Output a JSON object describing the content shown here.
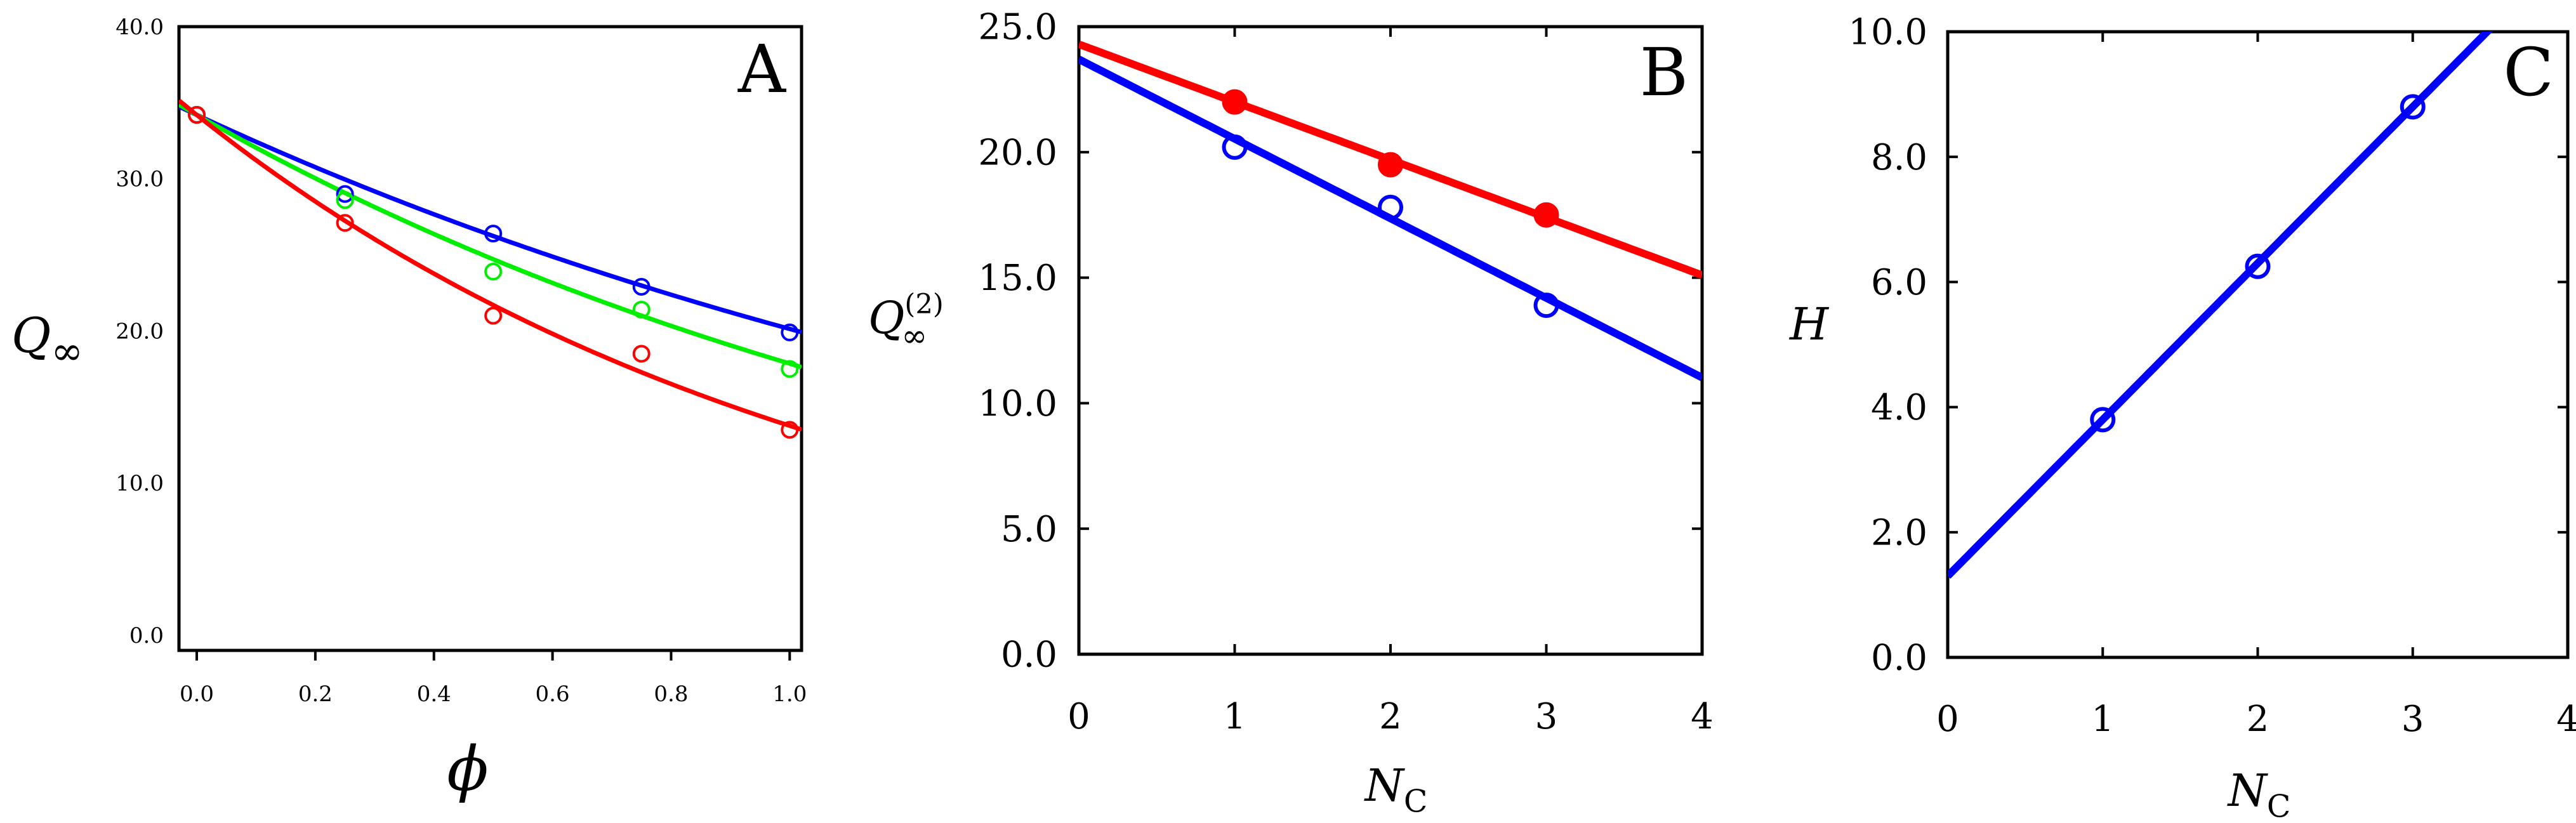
{
  "chart_data": [
    {
      "type": "scatter",
      "panel": "A",
      "xlabel": "ϕ",
      "ylabel": "Q",
      "ylabel_sub": "∞",
      "xlim": [
        -0.03,
        1.02
      ],
      "ylim": [
        -1.0,
        40.0
      ],
      "xticks": [
        0.0,
        0.2,
        0.4,
        0.6,
        0.8,
        1.0
      ],
      "xtick_labels": [
        "0.0",
        "0.2",
        "0.4",
        "0.6",
        "0.8",
        "1.0"
      ],
      "yticks": [
        0,
        10,
        20,
        30,
        40
      ],
      "ytick_labels": [
        "0.0",
        "10.0",
        "20.0",
        "30.0",
        "40.0"
      ],
      "series": [
        {
          "color": "#0000ff",
          "markers": "open-circle",
          "x": [
            0.0,
            0.25,
            0.5,
            0.75,
            1.0
          ],
          "y": [
            34.2,
            29.0,
            26.4,
            22.9,
            19.9
          ],
          "fit": {
            "kind": "exp",
            "a": 34.2,
            "b": 0.53
          }
        },
        {
          "color": "#00ee00",
          "markers": "open-circle",
          "x": [
            0.0,
            0.25,
            0.5,
            0.75,
            1.0
          ],
          "y": [
            34.2,
            28.6,
            23.9,
            21.4,
            17.5
          ],
          "fit": {
            "kind": "exp",
            "a": 34.2,
            "b": 0.65
          }
        },
        {
          "color": "#ff0000",
          "markers": "open-circle",
          "x": [
            0.0,
            0.25,
            0.5,
            0.75,
            1.0
          ],
          "y": [
            34.2,
            27.1,
            21.0,
            18.5,
            13.5
          ],
          "fit": {
            "kind": "exp",
            "a": 34.2,
            "b": 0.91
          }
        }
      ]
    },
    {
      "type": "scatter",
      "panel": "B",
      "xlabel": "N",
      "xlabel_sub": "C",
      "ylabel": "Q",
      "ylabel_sub": "∞",
      "ylabel_sup": "(2)",
      "xlim": [
        0,
        4
      ],
      "ylim": [
        0,
        25
      ],
      "xticks": [
        0,
        1,
        2,
        3,
        4
      ],
      "xtick_labels": [
        "0",
        "1",
        "2",
        "3",
        "4"
      ],
      "yticks": [
        0,
        5,
        10,
        15,
        20,
        25
      ],
      "ytick_labels": [
        "0.0",
        "5.0",
        "10.0",
        "15.0",
        "20.0",
        "25.0"
      ],
      "series": [
        {
          "color": "#ff0000",
          "markers": "filled-circle",
          "x": [
            1,
            2,
            3
          ],
          "y": [
            22.0,
            19.5,
            17.5
          ],
          "fit": {
            "kind": "linear",
            "intercept": 24.3,
            "slope": -2.3
          }
        },
        {
          "color": "#0000ff",
          "markers": "open-circle",
          "x": [
            1,
            2,
            3
          ],
          "y": [
            20.2,
            17.8,
            13.9
          ],
          "fit": {
            "kind": "linear",
            "intercept": 23.7,
            "slope": -3.17
          }
        }
      ]
    },
    {
      "type": "scatter",
      "panel": "C",
      "xlabel": "N",
      "xlabel_sub": "C",
      "ylabel": "H",
      "xlim": [
        0,
        4
      ],
      "ylim": [
        0,
        10
      ],
      "xticks": [
        0,
        1,
        2,
        3,
        4
      ],
      "xtick_labels": [
        "0",
        "1",
        "2",
        "3",
        "4"
      ],
      "yticks": [
        0,
        2,
        4,
        6,
        8,
        10
      ],
      "ytick_labels": [
        "0.0",
        "2.0",
        "4.0",
        "6.0",
        "8.0",
        "10.0"
      ],
      "series": [
        {
          "color": "#0000ff",
          "markers": "open-circle",
          "x": [
            1,
            2,
            3
          ],
          "y": [
            3.8,
            6.25,
            8.8
          ],
          "fit": {
            "kind": "linear",
            "intercept": 1.3,
            "slope": 2.5
          }
        }
      ]
    }
  ]
}
